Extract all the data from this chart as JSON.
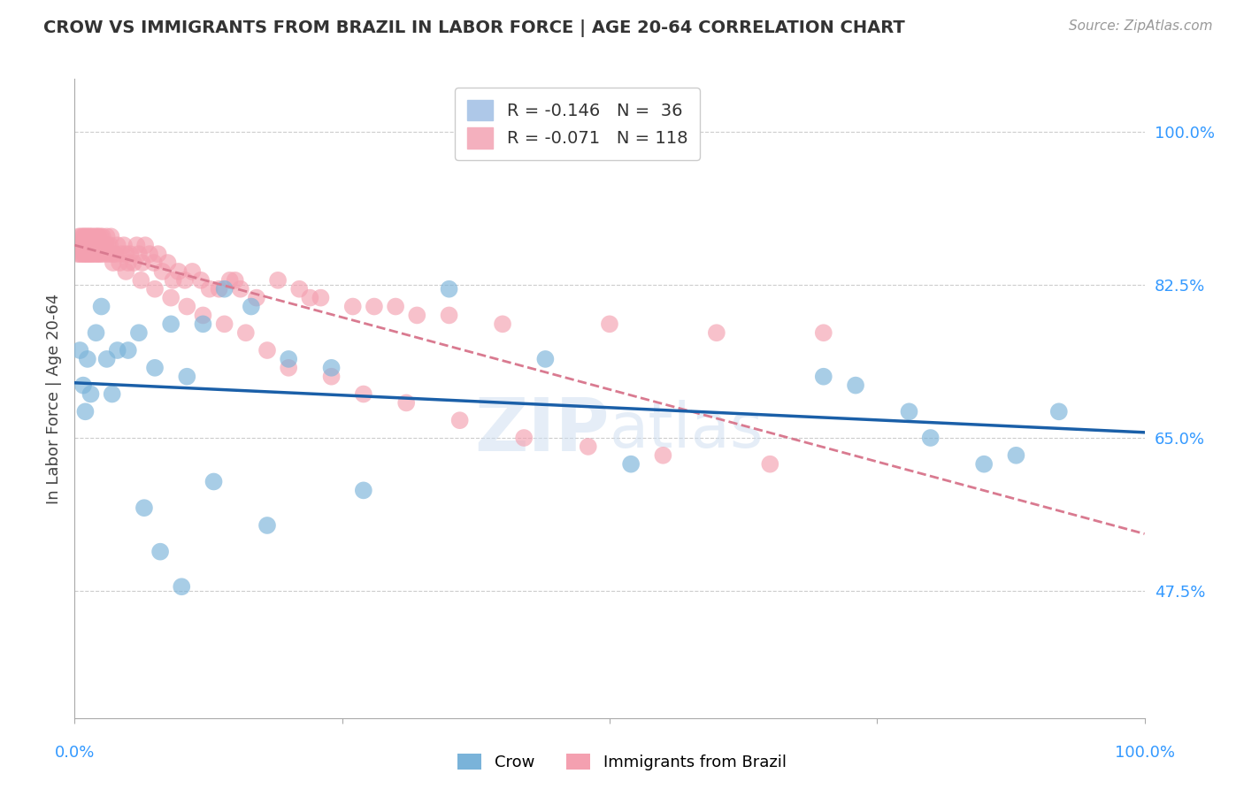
{
  "title": "CROW VS IMMIGRANTS FROM BRAZIL IN LABOR FORCE | AGE 20-64 CORRELATION CHART",
  "source": "Source: ZipAtlas.com",
  "ylabel": "In Labor Force | Age 20-64",
  "yticks": [
    "47.5%",
    "65.0%",
    "82.5%",
    "100.0%"
  ],
  "ytick_values": [
    0.475,
    0.65,
    0.825,
    1.0
  ],
  "xlim": [
    0.0,
    1.0
  ],
  "ylim": [
    0.33,
    1.06
  ],
  "crow_color": "#7ab3d9",
  "brazil_color": "#f4a0b0",
  "crow_line_color": "#1a5fa8",
  "brazil_line_color": "#d97a90",
  "crow_R": -0.146,
  "brazil_R": -0.071,
  "crow_N": 36,
  "brazil_N": 118,
  "crow_scatter_x": [
    0.005,
    0.008,
    0.01,
    0.012,
    0.015,
    0.02,
    0.025,
    0.03,
    0.035,
    0.04,
    0.05,
    0.06,
    0.075,
    0.09,
    0.105,
    0.12,
    0.14,
    0.165,
    0.2,
    0.24,
    0.35,
    0.44,
    0.52,
    0.7,
    0.73,
    0.78,
    0.8,
    0.85,
    0.88,
    0.92,
    0.065,
    0.08,
    0.1,
    0.13,
    0.18,
    0.27
  ],
  "crow_scatter_y": [
    0.75,
    0.71,
    0.68,
    0.74,
    0.7,
    0.77,
    0.8,
    0.74,
    0.7,
    0.75,
    0.75,
    0.77,
    0.73,
    0.78,
    0.72,
    0.78,
    0.82,
    0.8,
    0.74,
    0.73,
    0.82,
    0.74,
    0.62,
    0.72,
    0.71,
    0.68,
    0.65,
    0.62,
    0.63,
    0.68,
    0.57,
    0.52,
    0.48,
    0.6,
    0.55,
    0.59
  ],
  "brazil_scatter_x": [
    0.002,
    0.003,
    0.004,
    0.005,
    0.005,
    0.006,
    0.006,
    0.007,
    0.007,
    0.008,
    0.008,
    0.009,
    0.009,
    0.01,
    0.01,
    0.01,
    0.011,
    0.011,
    0.012,
    0.012,
    0.013,
    0.013,
    0.014,
    0.014,
    0.015,
    0.015,
    0.015,
    0.016,
    0.016,
    0.017,
    0.017,
    0.018,
    0.018,
    0.019,
    0.019,
    0.02,
    0.02,
    0.021,
    0.021,
    0.022,
    0.022,
    0.023,
    0.023,
    0.024,
    0.024,
    0.025,
    0.025,
    0.026,
    0.027,
    0.028,
    0.029,
    0.03,
    0.031,
    0.032,
    0.033,
    0.034,
    0.035,
    0.036,
    0.038,
    0.04,
    0.042,
    0.044,
    0.046,
    0.048,
    0.05,
    0.052,
    0.055,
    0.058,
    0.06,
    0.063,
    0.066,
    0.07,
    0.074,
    0.078,
    0.082,
    0.087,
    0.092,
    0.097,
    0.103,
    0.11,
    0.118,
    0.126,
    0.135,
    0.145,
    0.155,
    0.17,
    0.19,
    0.21,
    0.23,
    0.26,
    0.3,
    0.35,
    0.4,
    0.5,
    0.6,
    0.7,
    0.15,
    0.22,
    0.28,
    0.32,
    0.048,
    0.062,
    0.075,
    0.09,
    0.105,
    0.12,
    0.14,
    0.16,
    0.18,
    0.2,
    0.24,
    0.27,
    0.31,
    0.36,
    0.42,
    0.48,
    0.55,
    0.65
  ],
  "brazil_scatter_y": [
    0.87,
    0.86,
    0.88,
    0.87,
    0.86,
    0.88,
    0.87,
    0.86,
    0.87,
    0.88,
    0.87,
    0.86,
    0.88,
    0.87,
    0.86,
    0.87,
    0.88,
    0.87,
    0.86,
    0.88,
    0.87,
    0.86,
    0.87,
    0.88,
    0.86,
    0.87,
    0.88,
    0.87,
    0.86,
    0.87,
    0.88,
    0.87,
    0.86,
    0.88,
    0.87,
    0.86,
    0.87,
    0.88,
    0.87,
    0.86,
    0.88,
    0.87,
    0.86,
    0.87,
    0.88,
    0.86,
    0.87,
    0.88,
    0.87,
    0.86,
    0.87,
    0.88,
    0.87,
    0.86,
    0.87,
    0.88,
    0.86,
    0.85,
    0.86,
    0.87,
    0.85,
    0.86,
    0.87,
    0.86,
    0.85,
    0.86,
    0.85,
    0.87,
    0.86,
    0.85,
    0.87,
    0.86,
    0.85,
    0.86,
    0.84,
    0.85,
    0.83,
    0.84,
    0.83,
    0.84,
    0.83,
    0.82,
    0.82,
    0.83,
    0.82,
    0.81,
    0.83,
    0.82,
    0.81,
    0.8,
    0.8,
    0.79,
    0.78,
    0.78,
    0.77,
    0.77,
    0.83,
    0.81,
    0.8,
    0.79,
    0.84,
    0.83,
    0.82,
    0.81,
    0.8,
    0.79,
    0.78,
    0.77,
    0.75,
    0.73,
    0.72,
    0.7,
    0.69,
    0.67,
    0.65,
    0.64,
    0.63,
    0.62
  ]
}
